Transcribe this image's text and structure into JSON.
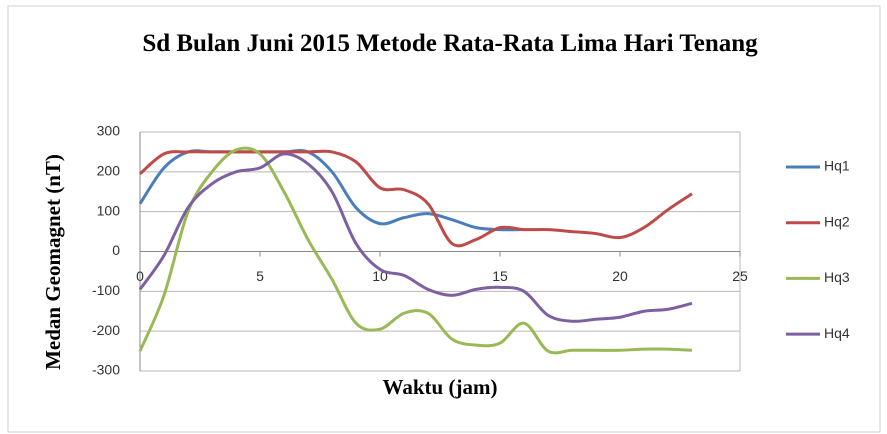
{
  "chart_data": {
    "type": "line",
    "title": "Sd Bulan Juni 2015 Metode Rata-Rata Lima Hari Tenang",
    "xlabel": "Waktu (jam)",
    "ylabel": "Medan Geomagnet (nT)",
    "x": [
      0,
      1,
      2,
      3,
      4,
      5,
      6,
      7,
      8,
      9,
      10,
      11,
      12,
      13,
      14,
      15,
      16,
      17,
      18,
      19,
      20,
      21,
      22,
      23
    ],
    "series": [
      {
        "name": "Hq1",
        "color": "#4a7ebb",
        "values": [
          120,
          210,
          250,
          250,
          250,
          250,
          250,
          250,
          200,
          110,
          70,
          85,
          95,
          80,
          60,
          55,
          55,
          null,
          null,
          null,
          null,
          null,
          null,
          null
        ]
      },
      {
        "name": "Hq2",
        "color": "#be4b48",
        "values": [
          195,
          245,
          250,
          250,
          250,
          250,
          250,
          250,
          250,
          225,
          160,
          155,
          120,
          20,
          30,
          60,
          55,
          55,
          50,
          45,
          35,
          60,
          105,
          145
        ]
      },
      {
        "name": "Hq3",
        "color": "#98b954",
        "values": [
          -250,
          -110,
          100,
          200,
          255,
          245,
          150,
          30,
          -70,
          -180,
          -195,
          -155,
          -155,
          -220,
          -235,
          -230,
          -180,
          -250,
          -248,
          -248,
          -248,
          -245,
          -245,
          -248
        ]
      },
      {
        "name": "Hq4",
        "color": "#7d60a0",
        "values": [
          -95,
          -10,
          110,
          170,
          200,
          210,
          245,
          220,
          150,
          20,
          -45,
          -60,
          -95,
          -110,
          -95,
          -90,
          -100,
          -160,
          -175,
          -170,
          -165,
          -150,
          -145,
          -130
        ]
      }
    ],
    "xlim": [
      0,
      25
    ],
    "xticks": [
      0,
      5,
      10,
      15,
      20,
      25
    ],
    "ylim": [
      -300,
      300
    ],
    "yticks": [
      -300,
      -200,
      -100,
      0,
      100,
      200,
      300
    ],
    "grid": true,
    "legend": "right"
  }
}
